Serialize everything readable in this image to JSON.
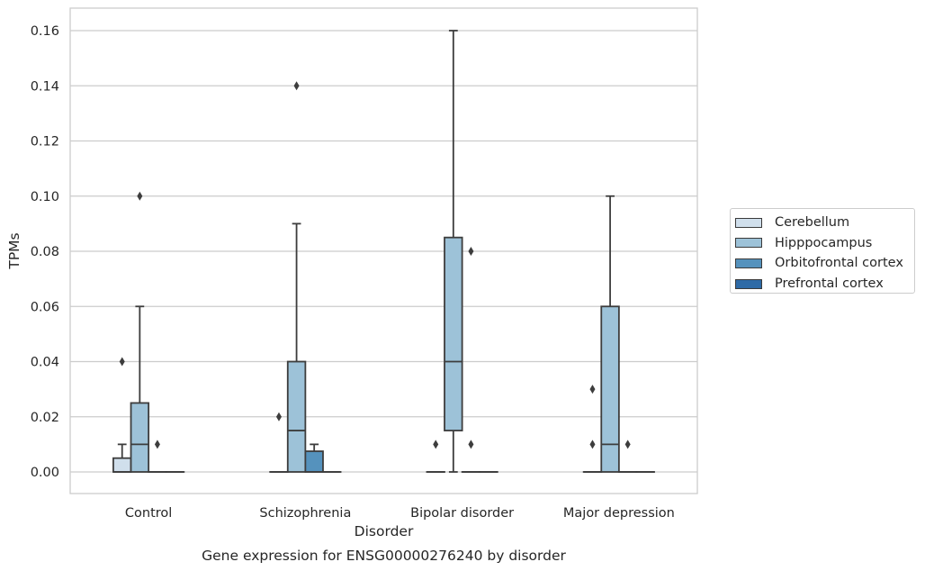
{
  "chart_data": {
    "type": "box",
    "title": "Gene expression for ENSG00000276240 by disorder",
    "xlabel": "Disorder",
    "ylabel": "TPMs",
    "ylim": [
      -0.008,
      0.168
    ],
    "yticks": [
      0.0,
      0.02,
      0.04,
      0.06,
      0.08,
      0.1,
      0.12,
      0.14,
      0.16
    ],
    "ytick_labels": [
      "0.00",
      "0.02",
      "0.04",
      "0.06",
      "0.08",
      "0.10",
      "0.12",
      "0.14",
      "0.16"
    ],
    "categories": [
      "Control",
      "Schizophrenia",
      "Bipolar disorder",
      "Major depression"
    ],
    "grid": true,
    "legend_position": "right",
    "series": [
      {
        "name": "Cerebellum",
        "color": "#d0dfec",
        "boxes": [
          {
            "min": 0.0,
            "q1": 0.0,
            "median": 0.0,
            "q3": 0.005,
            "max": 0.01,
            "outliers": []
          },
          {
            "min": 0.0,
            "q1": 0.0,
            "median": 0.0,
            "q3": 0.0,
            "max": 0.0,
            "outliers": [
              0.02
            ]
          },
          {
            "min": 0.0,
            "q1": 0.0,
            "median": 0.0,
            "q3": 0.0,
            "max": 0.0,
            "outliers": []
          },
          {
            "min": 0.0,
            "q1": 0.0,
            "median": 0.0,
            "q3": 0.0,
            "max": 0.0,
            "outliers": []
          }
        ],
        "outliers_left": [
          [
            0.04
          ],
          [],
          [
            0.01
          ],
          [
            0.03,
            0.01
          ]
        ]
      },
      {
        "name": "Hipppocampus",
        "color": "#9dc2d8",
        "boxes": [
          {
            "min": 0.0,
            "q1": 0.0,
            "median": 0.01,
            "q3": 0.025,
            "max": 0.06,
            "outliers": [
              0.1
            ]
          },
          {
            "min": 0.0,
            "q1": 0.0,
            "median": 0.015,
            "q3": 0.04,
            "max": 0.09,
            "outliers": [
              0.14
            ]
          },
          {
            "min": 0.0,
            "q1": 0.015,
            "median": 0.04,
            "q3": 0.085,
            "max": 0.16,
            "outliers": []
          },
          {
            "min": 0.0,
            "q1": 0.0,
            "median": 0.01,
            "q3": 0.06,
            "max": 0.1,
            "outliers": []
          }
        ]
      },
      {
        "name": "Orbitofrontal cortex",
        "color": "#5592bd",
        "boxes": [
          {
            "min": 0.0,
            "q1": 0.0,
            "median": 0.0,
            "q3": 0.0,
            "max": 0.0,
            "outliers": [
              0.01
            ]
          },
          {
            "min": 0.0,
            "q1": 0.0,
            "median": 0.0,
            "q3": 0.0075,
            "max": 0.01,
            "outliers": []
          },
          {
            "min": 0.0,
            "q1": 0.0,
            "median": 0.0,
            "q3": 0.0,
            "max": 0.0,
            "outliers": [
              0.08,
              0.01
            ]
          },
          {
            "min": 0.0,
            "q1": 0.0,
            "median": 0.0,
            "q3": 0.0,
            "max": 0.0,
            "outliers": [
              0.01
            ]
          }
        ]
      },
      {
        "name": "Prefrontal cortex",
        "color": "#2e6aa6",
        "boxes": [
          {
            "min": 0.0,
            "q1": 0.0,
            "median": 0.0,
            "q3": 0.0,
            "max": 0.0,
            "outliers": []
          },
          {
            "min": 0.0,
            "q1": 0.0,
            "median": 0.0,
            "q3": 0.0,
            "max": 0.0,
            "outliers": []
          },
          {
            "min": 0.0,
            "q1": 0.0,
            "median": 0.0,
            "q3": 0.0,
            "max": 0.0,
            "outliers": []
          },
          {
            "min": 0.0,
            "q1": 0.0,
            "median": 0.0,
            "q3": 0.0,
            "max": 0.0,
            "outliers": []
          }
        ]
      }
    ]
  }
}
